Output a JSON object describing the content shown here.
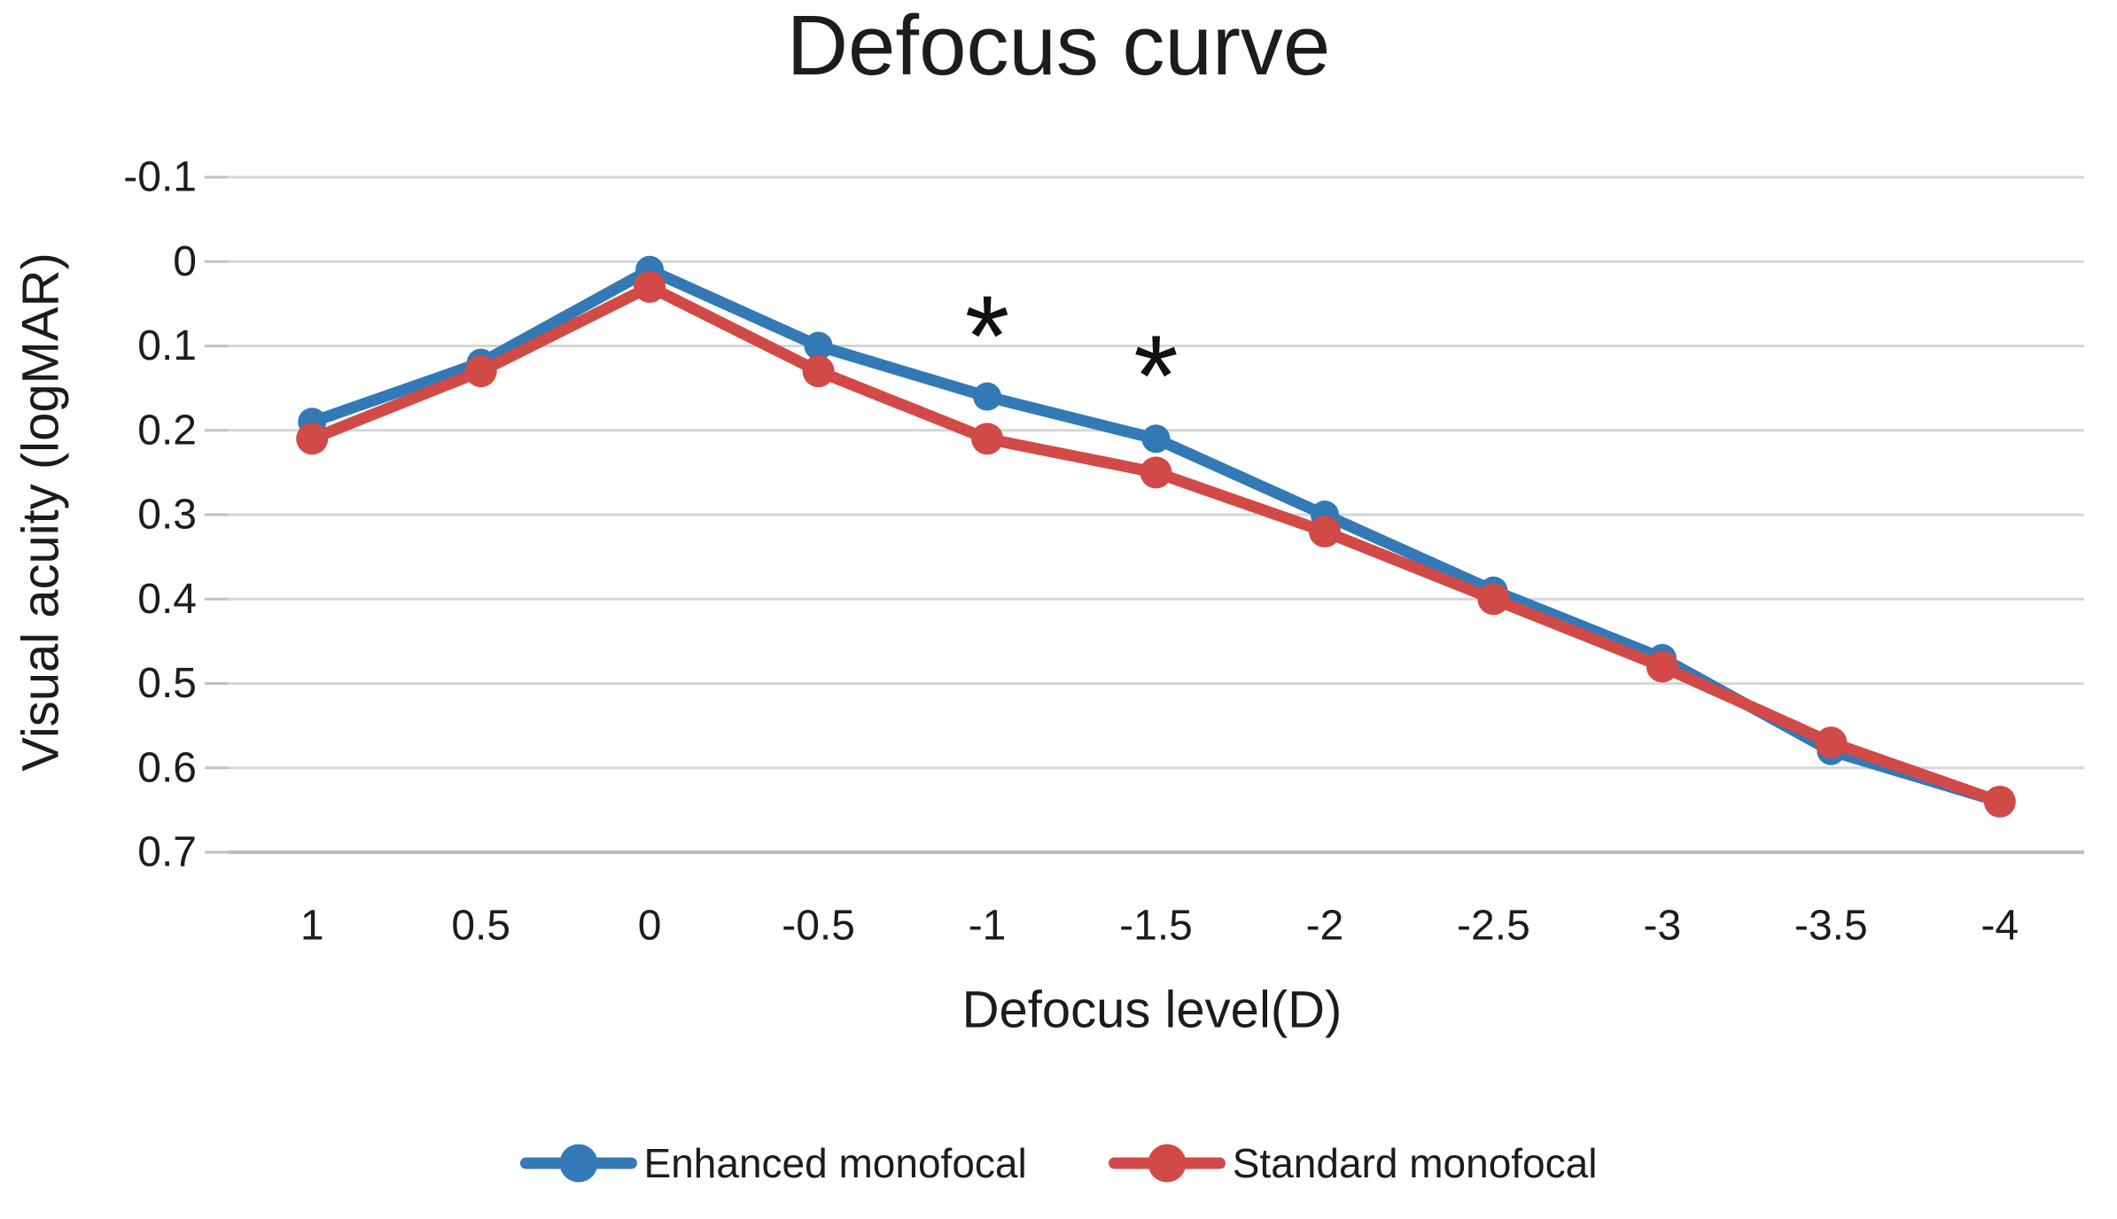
{
  "chart_data": {
    "type": "line",
    "title": "Defocus curve",
    "xlabel": "Defocus level(D)",
    "ylabel": "Visual acuity (logMAR)",
    "categories": [
      "1",
      "0.5",
      "0",
      "-0.5",
      "-1",
      "-1.5",
      "-2",
      "-2.5",
      "-3",
      "-3.5",
      "-4"
    ],
    "y_axis": {
      "min": -0.1,
      "max": 0.7,
      "step": 0.1,
      "inverted": true,
      "tick_labels": [
        "-0.1",
        "0",
        "0.1",
        "0.2",
        "0.3",
        "0.4",
        "0.5",
        "0.6",
        "0.7"
      ]
    },
    "series": [
      {
        "name": "Enhanced monofocal",
        "color": "#3379B6",
        "marker_radius": 16,
        "values": [
          0.19,
          0.12,
          0.01,
          0.1,
          0.16,
          0.21,
          0.3,
          0.39,
          0.47,
          0.58,
          0.64
        ]
      },
      {
        "name": "Standard monofocal",
        "color": "#D24A47",
        "marker_radius": 18,
        "values": [
          0.21,
          0.13,
          0.03,
          0.13,
          0.21,
          0.25,
          0.32,
          0.4,
          0.48,
          0.57,
          0.64
        ]
      }
    ],
    "annotations": [
      {
        "text": "*",
        "category": "-1",
        "value": 0.066
      },
      {
        "text": "*",
        "category": "-1.5",
        "value": 0.113
      }
    ],
    "grid": {
      "color": "#D6D6D6",
      "axis_color": "#BFBFBF",
      "tick_color": "#C2C2C2"
    },
    "legend_position": "bottom",
    "text_color": "#1c1c1c"
  }
}
